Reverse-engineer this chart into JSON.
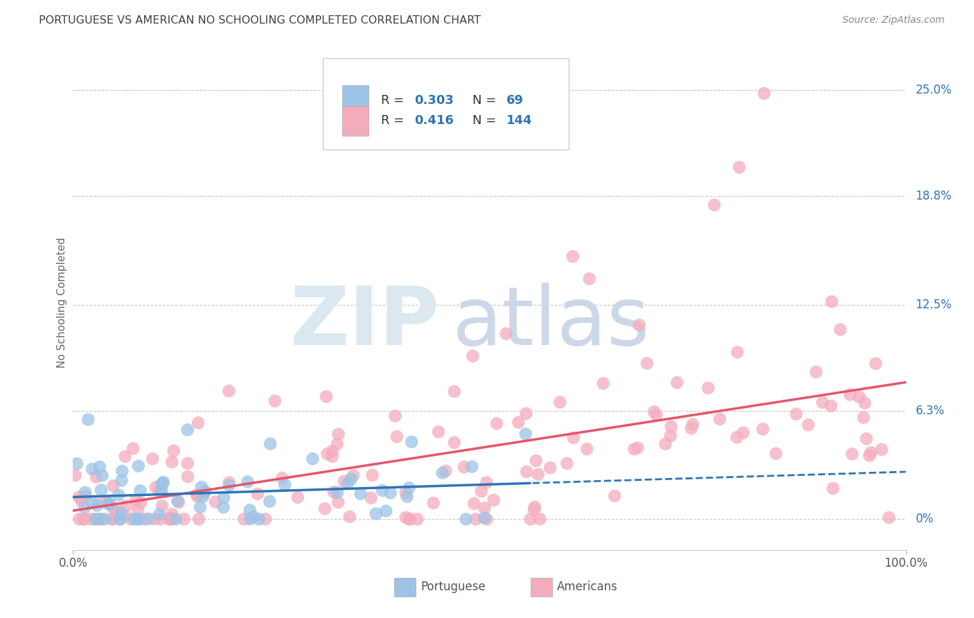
{
  "title": "PORTUGUESE VS AMERICAN NO SCHOOLING COMPLETED CORRELATION CHART",
  "source": "Source: ZipAtlas.com",
  "ylabel": "No Schooling Completed",
  "ytick_values": [
    0.0,
    0.063,
    0.125,
    0.188,
    0.25
  ],
  "ytick_labels_right": [
    "0%",
    "6.3%",
    "12.5%",
    "18.8%",
    "25.0%"
  ],
  "xmin": 0.0,
  "xmax": 1.0,
  "ymin": -0.018,
  "ymax": 0.27,
  "portuguese_N": 69,
  "americans_N": 144,
  "portuguese_R": "0.303",
  "americans_R": "0.416",
  "blue_scatter": "#9dc3e6",
  "pink_scatter": "#f4acbc",
  "blue_line": "#2e75b6",
  "pink_line": "#e8536b",
  "blue_legend_fill": "#9dc3e6",
  "pink_legend_fill": "#f4acbc",
  "right_axis_color": "#2e75b6",
  "grid_color": "#c8c8c8",
  "title_color": "#404040",
  "bg_color": "#ffffff",
  "bottom_label_color": "#555555",
  "seed": 123
}
